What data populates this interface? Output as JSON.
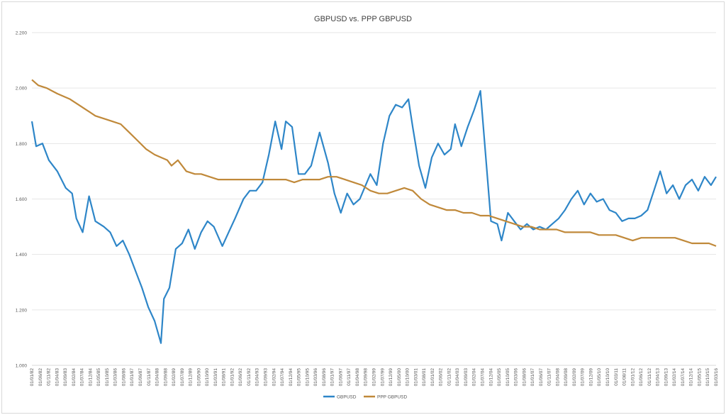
{
  "chart_data": {
    "type": "line",
    "title": "GBPUSD vs. PPP GBPUSD",
    "xlabel": "",
    "ylabel": "",
    "ylim": [
      1.0,
      2.2
    ],
    "y_ticks": [
      "1.000",
      "1.200",
      "1.400",
      "1.600",
      "1.800",
      "2.000",
      "2.200"
    ],
    "grid": "horizontal",
    "legend_position": "bottom",
    "x_tick_labels": [
      "01/01/82",
      "01/06/82",
      "01/11/82",
      "01/04/83",
      "01/09/83",
      "01/02/84",
      "01/07/84",
      "01/12/84",
      "01/05/85",
      "01/10/85",
      "01/03/86",
      "01/08/86",
      "01/01/87",
      "01/06/87",
      "01/11/87",
      "01/04/88",
      "01/09/88",
      "01/02/89",
      "01/07/89",
      "01/12/89",
      "01/05/90",
      "01/10/90",
      "01/03/91",
      "01/08/91",
      "01/01/92",
      "01/06/92",
      "01/11/92",
      "01/04/93",
      "01/09/93",
      "01/02/94",
      "01/07/94",
      "01/12/94",
      "01/05/95",
      "01/10/95",
      "01/03/96",
      "01/08/96",
      "01/01/97",
      "01/06/97",
      "01/11/97",
      "01/04/98",
      "01/09/98",
      "01/02/99",
      "01/07/99",
      "01/12/99",
      "01/05/00",
      "01/10/00",
      "01/03/01",
      "01/08/01",
      "01/01/02",
      "01/06/02",
      "01/11/02",
      "01/04/03",
      "01/09/03",
      "01/02/04",
      "01/07/04",
      "01/12/04",
      "01/05/05",
      "01/10/05",
      "01/03/06",
      "01/08/06",
      "01/01/07",
      "01/06/07",
      "01/11/07",
      "01/04/08",
      "01/09/08",
      "01/02/09",
      "01/07/09",
      "01/12/09",
      "01/05/10",
      "01/10/10",
      "01/03/11",
      "01/08/11",
      "01/01/12",
      "01/06/12",
      "01/11/12",
      "01/04/13",
      "01/09/13",
      "01/02/14",
      "01/07/14",
      "01/12/14",
      "01/05/15",
      "01/10/15",
      "01/03/16"
    ],
    "x_range_years": [
      1982.0,
      1998.17
    ],
    "series": [
      {
        "name": "GBPUSD",
        "color": "#2e86c8",
        "points": [
          [
            1982.0,
            1.88
          ],
          [
            1982.1,
            1.79
          ],
          [
            1982.25,
            1.8
          ],
          [
            1982.4,
            1.74
          ],
          [
            1982.6,
            1.7
          ],
          [
            1982.8,
            1.64
          ],
          [
            1982.95,
            1.62
          ],
          [
            1983.05,
            1.53
          ],
          [
            1983.2,
            1.48
          ],
          [
            1983.35,
            1.61
          ],
          [
            1983.5,
            1.52
          ],
          [
            1983.7,
            1.5
          ],
          [
            1983.85,
            1.48
          ],
          [
            1984.0,
            1.43
          ],
          [
            1984.15,
            1.45
          ],
          [
            1984.3,
            1.4
          ],
          [
            1984.45,
            1.34
          ],
          [
            1984.6,
            1.28
          ],
          [
            1984.75,
            1.21
          ],
          [
            1984.9,
            1.16
          ],
          [
            1985.05,
            1.08
          ],
          [
            1985.12,
            1.24
          ],
          [
            1985.25,
            1.28
          ],
          [
            1985.4,
            1.42
          ],
          [
            1985.55,
            1.44
          ],
          [
            1985.7,
            1.49
          ],
          [
            1985.85,
            1.42
          ],
          [
            1986.0,
            1.48
          ],
          [
            1986.15,
            1.52
          ],
          [
            1986.3,
            1.5
          ],
          [
            1986.5,
            1.43
          ],
          [
            1986.65,
            1.48
          ],
          [
            1986.8,
            1.53
          ],
          [
            1987.0,
            1.6
          ],
          [
            1987.15,
            1.63
          ],
          [
            1987.3,
            1.63
          ],
          [
            1987.45,
            1.66
          ],
          [
            1987.6,
            1.76
          ],
          [
            1987.75,
            1.88
          ],
          [
            1987.9,
            1.78
          ],
          [
            1988.0,
            1.88
          ],
          [
            1988.15,
            1.86
          ],
          [
            1988.3,
            1.69
          ],
          [
            1988.45,
            1.69
          ],
          [
            1988.6,
            1.72
          ],
          [
            1988.8,
            1.84
          ],
          [
            1989.0,
            1.73
          ],
          [
            1989.15,
            1.62
          ],
          [
            1989.3,
            1.55
          ],
          [
            1989.45,
            1.62
          ],
          [
            1989.6,
            1.58
          ],
          [
            1989.75,
            1.6
          ],
          [
            1990.0,
            1.69
          ],
          [
            1990.15,
            1.65
          ],
          [
            1990.3,
            1.8
          ],
          [
            1990.45,
            1.9
          ],
          [
            1990.6,
            1.94
          ],
          [
            1990.75,
            1.93
          ],
          [
            1990.9,
            1.96
          ],
          [
            1991.0,
            1.86
          ],
          [
            1991.15,
            1.72
          ],
          [
            1991.3,
            1.64
          ],
          [
            1991.45,
            1.75
          ],
          [
            1991.6,
            1.8
          ],
          [
            1991.75,
            1.76
          ],
          [
            1991.9,
            1.78
          ],
          [
            1992.0,
            1.87
          ],
          [
            1992.15,
            1.79
          ],
          [
            1992.3,
            1.86
          ],
          [
            1992.45,
            1.92
          ],
          [
            1992.6,
            1.99
          ],
          [
            1992.75,
            1.71
          ],
          [
            1992.85,
            1.52
          ],
          [
            1993.0,
            1.51
          ],
          [
            1993.1,
            1.45
          ],
          [
            1993.25,
            1.55
          ],
          [
            1993.4,
            1.52
          ],
          [
            1993.55,
            1.49
          ],
          [
            1993.7,
            1.51
          ],
          [
            1993.85,
            1.49
          ],
          [
            1994.0,
            1.5
          ],
          [
            1994.15,
            1.49
          ],
          [
            1994.3,
            1.51
          ],
          [
            1994.45,
            1.53
          ],
          [
            1994.6,
            1.56
          ],
          [
            1994.75,
            1.6
          ],
          [
            1994.9,
            1.63
          ],
          [
            1995.05,
            1.58
          ],
          [
            1995.2,
            1.62
          ],
          [
            1995.35,
            1.59
          ],
          [
            1995.5,
            1.6
          ],
          [
            1995.65,
            1.56
          ],
          [
            1995.8,
            1.55
          ],
          [
            1995.95,
            1.52
          ],
          [
            1996.1,
            1.53
          ],
          [
            1996.25,
            1.53
          ],
          [
            1996.4,
            1.54
          ],
          [
            1996.55,
            1.56
          ],
          [
            1996.7,
            1.63
          ],
          [
            1996.85,
            1.7
          ],
          [
            1997.0,
            1.62
          ],
          [
            1997.15,
            1.65
          ],
          [
            1997.3,
            1.6
          ],
          [
            1997.45,
            1.65
          ],
          [
            1997.6,
            1.67
          ],
          [
            1997.75,
            1.63
          ],
          [
            1997.9,
            1.68
          ],
          [
            1998.05,
            1.65
          ],
          [
            1998.17,
            1.68
          ]
        ]
      },
      {
        "name": "PPP GBPUSD",
        "color": "#c0893a",
        "points": [
          [
            1982.0,
            2.03
          ],
          [
            1982.15,
            2.01
          ],
          [
            1982.35,
            2.0
          ],
          [
            1982.6,
            1.98
          ],
          [
            1982.9,
            1.96
          ],
          [
            1983.1,
            1.94
          ],
          [
            1983.3,
            1.92
          ],
          [
            1983.5,
            1.9
          ],
          [
            1983.7,
            1.89
          ],
          [
            1983.9,
            1.88
          ],
          [
            1984.1,
            1.87
          ],
          [
            1984.3,
            1.84
          ],
          [
            1984.5,
            1.81
          ],
          [
            1984.7,
            1.78
          ],
          [
            1984.9,
            1.76
          ],
          [
            1985.05,
            1.75
          ],
          [
            1985.2,
            1.74
          ],
          [
            1985.3,
            1.72
          ],
          [
            1985.45,
            1.74
          ],
          [
            1985.65,
            1.7
          ],
          [
            1985.85,
            1.69
          ],
          [
            1986.0,
            1.69
          ],
          [
            1986.2,
            1.68
          ],
          [
            1986.4,
            1.67
          ],
          [
            1986.6,
            1.67
          ],
          [
            1986.8,
            1.67
          ],
          [
            1987.0,
            1.67
          ],
          [
            1987.2,
            1.67
          ],
          [
            1987.4,
            1.67
          ],
          [
            1987.6,
            1.67
          ],
          [
            1987.8,
            1.67
          ],
          [
            1988.0,
            1.67
          ],
          [
            1988.2,
            1.66
          ],
          [
            1988.4,
            1.67
          ],
          [
            1988.6,
            1.67
          ],
          [
            1988.8,
            1.67
          ],
          [
            1989.0,
            1.68
          ],
          [
            1989.2,
            1.68
          ],
          [
            1989.4,
            1.67
          ],
          [
            1989.6,
            1.66
          ],
          [
            1989.8,
            1.65
          ],
          [
            1990.0,
            1.63
          ],
          [
            1990.2,
            1.62
          ],
          [
            1990.4,
            1.62
          ],
          [
            1990.6,
            1.63
          ],
          [
            1990.8,
            1.64
          ],
          [
            1991.0,
            1.63
          ],
          [
            1991.2,
            1.6
          ],
          [
            1991.4,
            1.58
          ],
          [
            1991.6,
            1.57
          ],
          [
            1991.8,
            1.56
          ],
          [
            1992.0,
            1.56
          ],
          [
            1992.2,
            1.55
          ],
          [
            1992.4,
            1.55
          ],
          [
            1992.6,
            1.54
          ],
          [
            1992.8,
            1.54
          ],
          [
            1993.0,
            1.53
          ],
          [
            1993.2,
            1.52
          ],
          [
            1993.4,
            1.51
          ],
          [
            1993.6,
            1.5
          ],
          [
            1993.8,
            1.5
          ],
          [
            1994.0,
            1.49
          ],
          [
            1994.2,
            1.49
          ],
          [
            1994.4,
            1.49
          ],
          [
            1994.6,
            1.48
          ],
          [
            1994.8,
            1.48
          ],
          [
            1995.0,
            1.48
          ],
          [
            1995.2,
            1.48
          ],
          [
            1995.4,
            1.47
          ],
          [
            1995.6,
            1.47
          ],
          [
            1995.8,
            1.47
          ],
          [
            1996.0,
            1.46
          ],
          [
            1996.2,
            1.45
          ],
          [
            1996.4,
            1.46
          ],
          [
            1996.6,
            1.46
          ],
          [
            1996.8,
            1.46
          ],
          [
            1997.0,
            1.46
          ],
          [
            1997.2,
            1.46
          ],
          [
            1997.4,
            1.45
          ],
          [
            1997.6,
            1.44
          ],
          [
            1997.8,
            1.44
          ],
          [
            1998.0,
            1.44
          ],
          [
            1998.17,
            1.43
          ]
        ]
      }
    ]
  }
}
